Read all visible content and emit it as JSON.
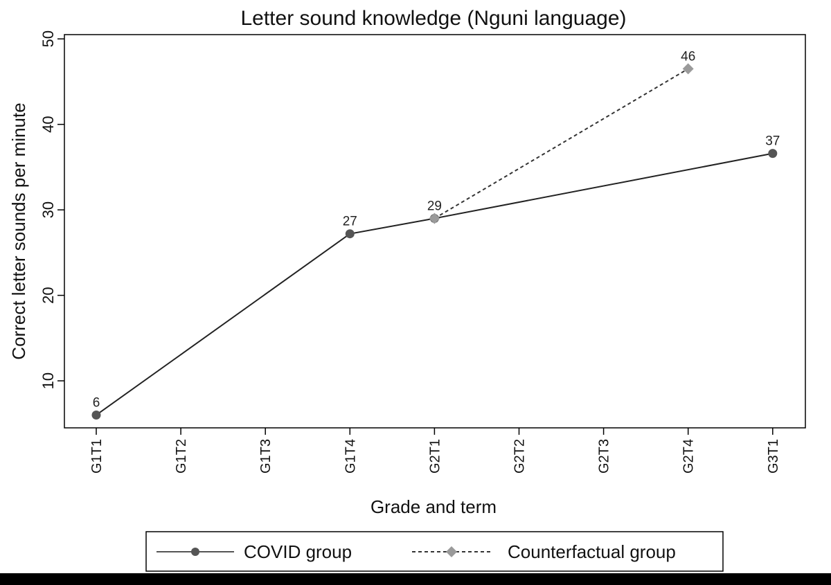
{
  "chart_data": {
    "type": "line",
    "title": "Letter sound knowledge (Nguni language)",
    "xlabel": "Grade and term",
    "ylabel": "Correct letter sounds per minute",
    "categories": [
      "G1T1",
      "G1T2",
      "G1T3",
      "G1T4",
      "G2T1",
      "G2T2",
      "G2T3",
      "G2T4",
      "G3T1"
    ],
    "ylim": [
      4.5,
      50.5
    ],
    "yticks": [
      "10",
      "20",
      "30",
      "40",
      "50"
    ],
    "grid": false,
    "legend_position": "bottom",
    "series": [
      {
        "name": "COVID group",
        "style": "solid",
        "marker": "circle",
        "color": "#555555",
        "points": [
          {
            "x": "G1T1",
            "y": 6,
            "label": "6"
          },
          {
            "x": "G1T4",
            "y": 27.2,
            "label": "27"
          },
          {
            "x": "G2T1",
            "y": 29,
            "label": ""
          },
          {
            "x": "G3T1",
            "y": 36.6,
            "label": "37"
          }
        ]
      },
      {
        "name": "Counterfactual group",
        "style": "dashed",
        "marker": "diamond",
        "color": "#9a9a9a",
        "points": [
          {
            "x": "G2T1",
            "y": 29,
            "label": "29"
          },
          {
            "x": "G2T4",
            "y": 46.5,
            "label": "46"
          }
        ]
      }
    ]
  }
}
